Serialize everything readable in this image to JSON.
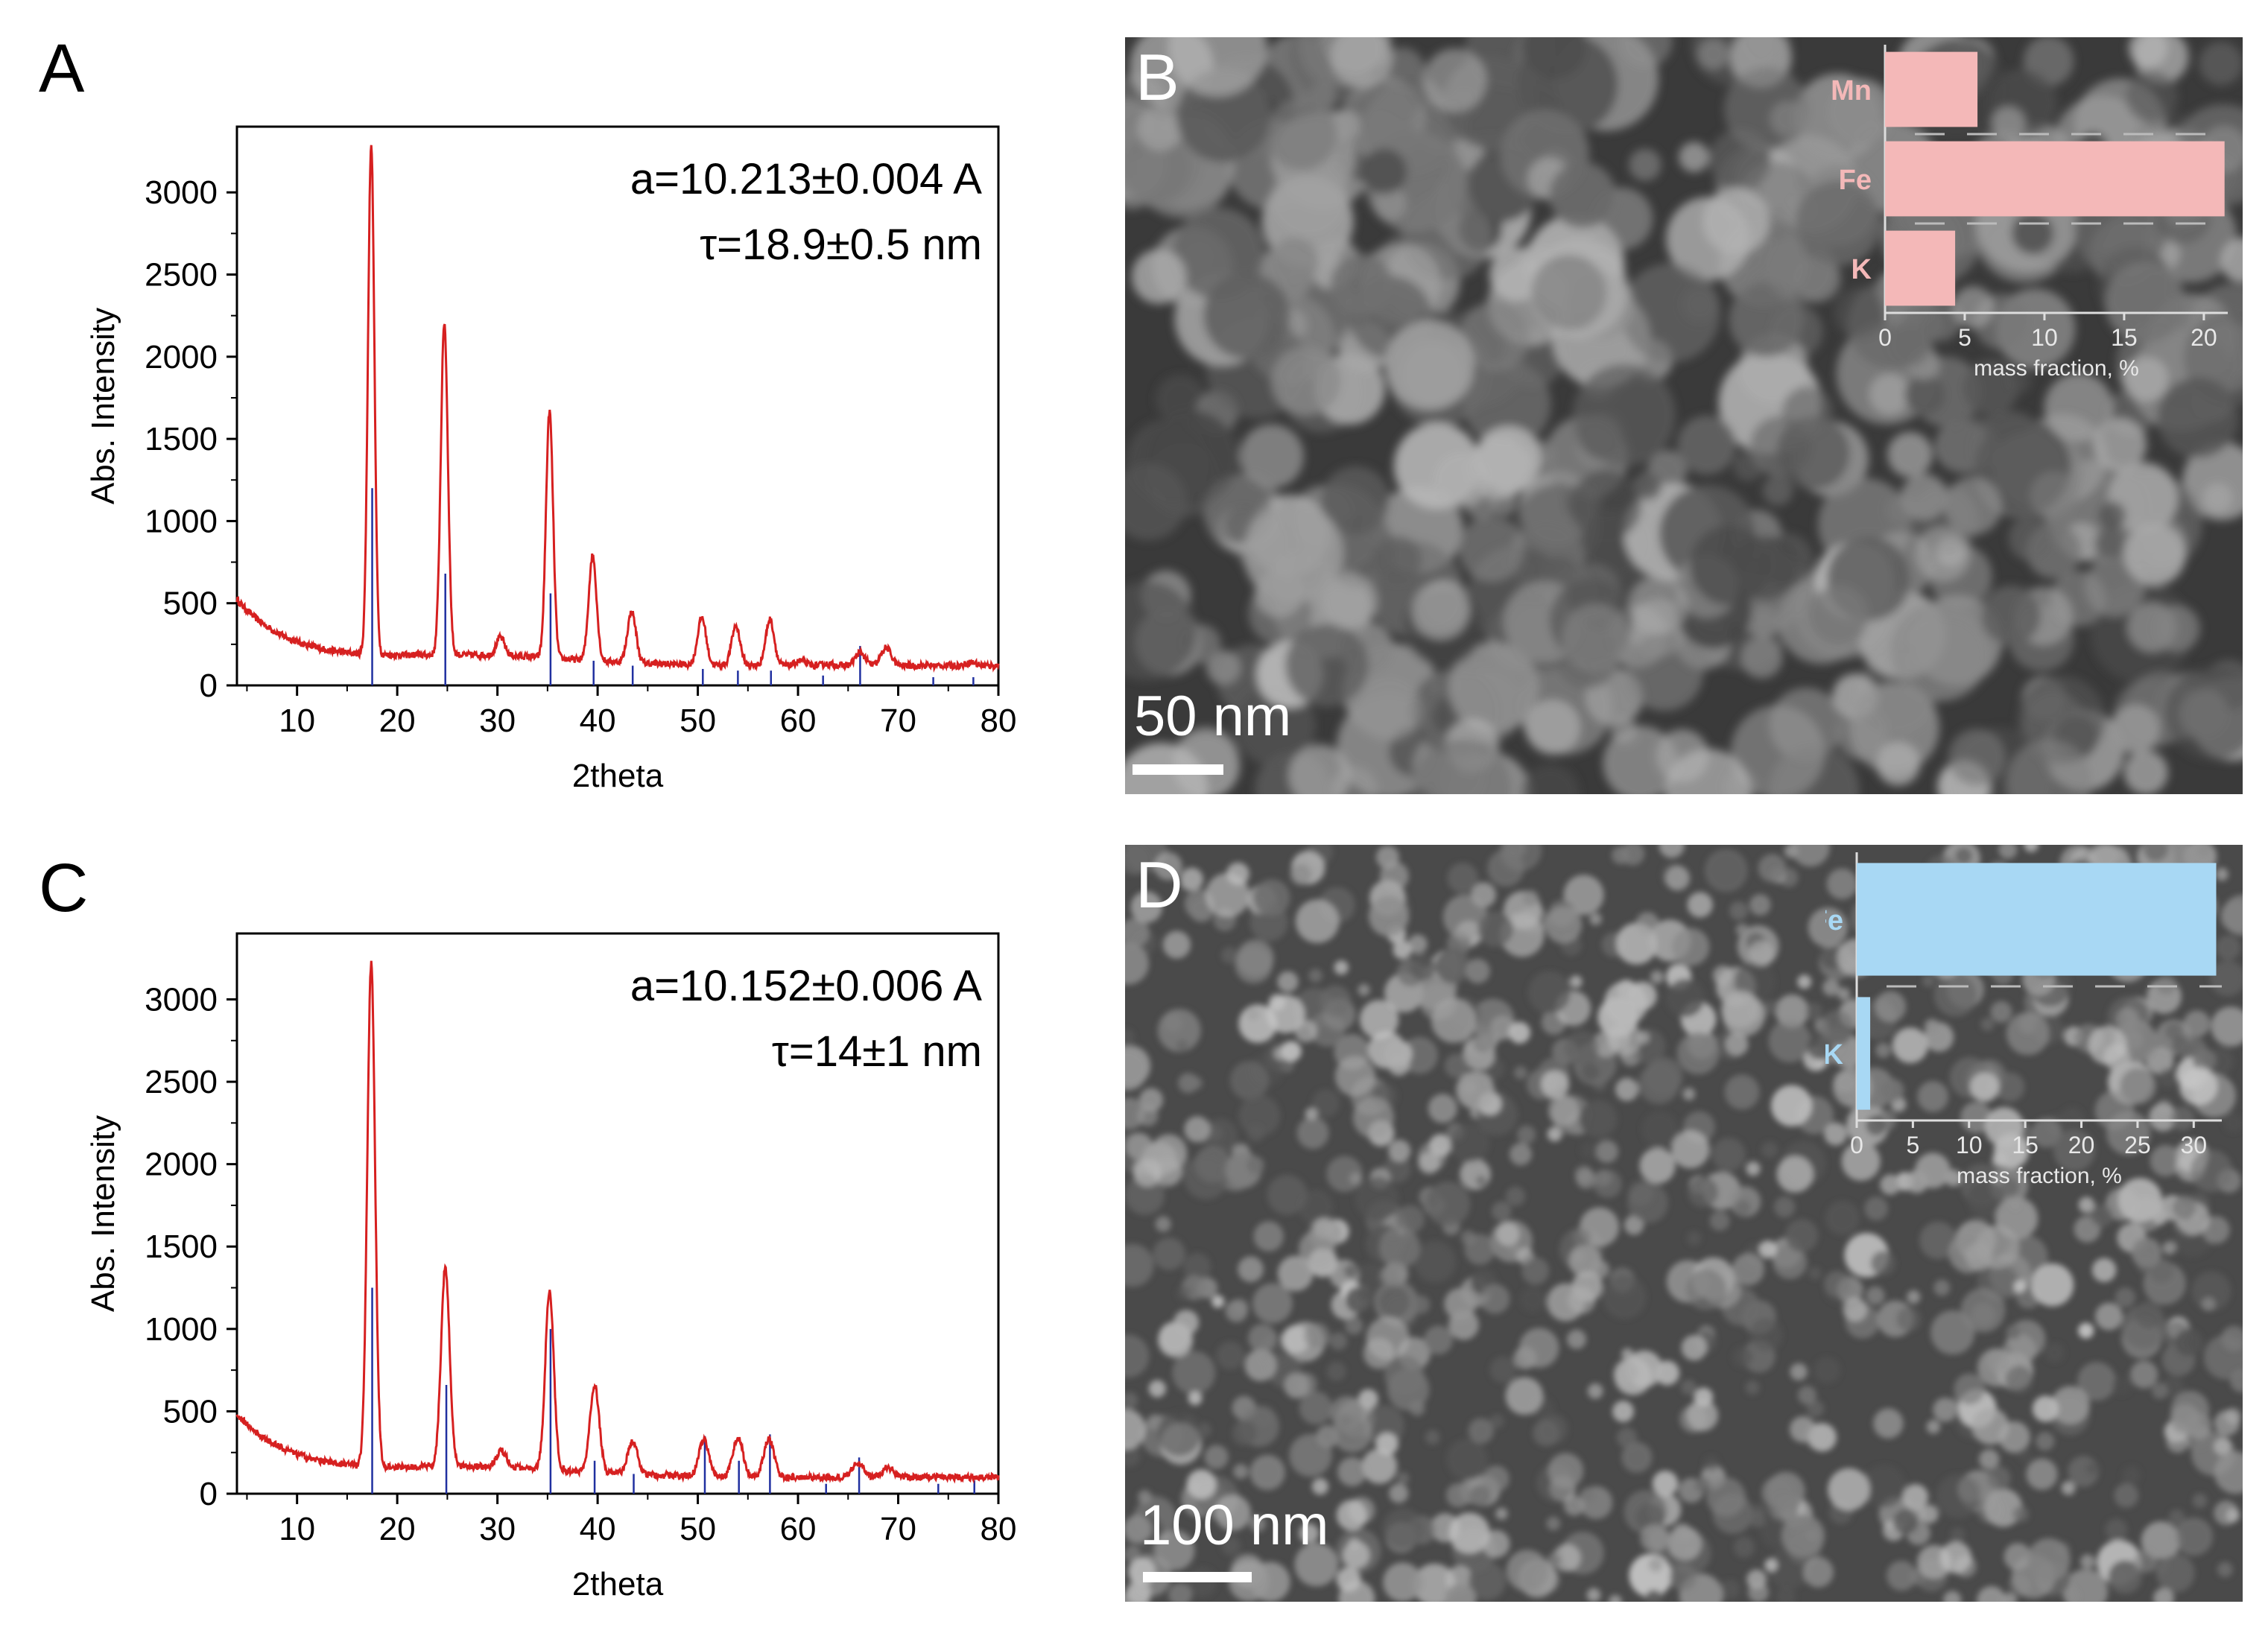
{
  "panels": {
    "A": {
      "letter": "A"
    },
    "B": {
      "letter": "B",
      "scale_label": "50 nm"
    },
    "C": {
      "letter": "C"
    },
    "D": {
      "letter": "D",
      "scale_label": "100 nm"
    }
  },
  "colors": {
    "xrd_line": "#d62020",
    "reference_line": "#2030a0",
    "inset_B_bar": "#f4b8b8",
    "inset_D_bar": "#a8d8f4",
    "inset_axis_text": "#e8e8e8"
  },
  "chart_data": [
    {
      "id": "A",
      "type": "line",
      "xlabel": "2theta",
      "ylabel": "Abs. Intensity",
      "xlim": [
        4,
        80
      ],
      "ylim": [
        0,
        3400
      ],
      "xticks": [
        10,
        20,
        30,
        40,
        50,
        60,
        70,
        80
      ],
      "yticks": [
        0,
        500,
        1000,
        1500,
        2000,
        2500,
        3000
      ],
      "annotations": [
        "a=10.213±0.004 A",
        "τ=18.9±0.5 nm"
      ],
      "background": {
        "start": 520,
        "floor": 120
      },
      "peaks": [
        {
          "x": 17.4,
          "y": 3230,
          "w": 0.45
        },
        {
          "x": 24.7,
          "y": 2140,
          "w": 0.5
        },
        {
          "x": 30.3,
          "y": 230,
          "w": 0.6
        },
        {
          "x": 35.2,
          "y": 1620,
          "w": 0.5
        },
        {
          "x": 39.5,
          "y": 760,
          "w": 0.55
        },
        {
          "x": 43.4,
          "y": 430,
          "w": 0.6
        },
        {
          "x": 50.4,
          "y": 410,
          "w": 0.6
        },
        {
          "x": 53.8,
          "y": 360,
          "w": 0.6
        },
        {
          "x": 57.2,
          "y": 400,
          "w": 0.6
        },
        {
          "x": 60.3,
          "y": 150,
          "w": 0.7
        },
        {
          "x": 63.0,
          "y": 130,
          "w": 0.7
        },
        {
          "x": 66.2,
          "y": 200,
          "w": 0.7
        },
        {
          "x": 68.8,
          "y": 230,
          "w": 0.7
        },
        {
          "x": 74.5,
          "y": 120,
          "w": 0.7
        },
        {
          "x": 77.3,
          "y": 140,
          "w": 0.7
        }
      ],
      "reference": [
        {
          "x": 17.5,
          "y": 1200
        },
        {
          "x": 24.8,
          "y": 680
        },
        {
          "x": 35.3,
          "y": 560
        },
        {
          "x": 39.6,
          "y": 150
        },
        {
          "x": 43.5,
          "y": 120
        },
        {
          "x": 50.5,
          "y": 100
        },
        {
          "x": 54.0,
          "y": 90
        },
        {
          "x": 57.3,
          "y": 90
        },
        {
          "x": 62.5,
          "y": 60
        },
        {
          "x": 66.2,
          "y": 240
        },
        {
          "x": 73.5,
          "y": 50
        },
        {
          "x": 77.5,
          "y": 50
        }
      ]
    },
    {
      "id": "C",
      "type": "line",
      "xlabel": "2theta",
      "ylabel": "Abs. Intensity",
      "xlim": [
        4,
        80
      ],
      "ylim": [
        0,
        3400
      ],
      "xticks": [
        10,
        20,
        30,
        40,
        50,
        60,
        70,
        80
      ],
      "yticks": [
        0,
        500,
        1000,
        1500,
        2000,
        2500,
        3000
      ],
      "annotations": [
        "a=10.152±0.006 A",
        "τ=14±1 nm"
      ],
      "background": {
        "start": 480,
        "floor": 100
      },
      "peaks": [
        {
          "x": 17.4,
          "y": 3150,
          "w": 0.55
        },
        {
          "x": 24.8,
          "y": 1310,
          "w": 0.6
        },
        {
          "x": 30.4,
          "y": 200,
          "w": 0.7
        },
        {
          "x": 35.2,
          "y": 1180,
          "w": 0.6
        },
        {
          "x": 39.7,
          "y": 630,
          "w": 0.65
        },
        {
          "x": 43.5,
          "y": 300,
          "w": 0.7
        },
        {
          "x": 50.6,
          "y": 320,
          "w": 0.7
        },
        {
          "x": 54.0,
          "y": 340,
          "w": 0.7
        },
        {
          "x": 57.1,
          "y": 330,
          "w": 0.7
        },
        {
          "x": 66.0,
          "y": 190,
          "w": 0.8
        },
        {
          "x": 69.0,
          "y": 160,
          "w": 0.8
        },
        {
          "x": 77.5,
          "y": 100,
          "w": 0.8
        }
      ],
      "reference": [
        {
          "x": 17.5,
          "y": 1250
        },
        {
          "x": 24.9,
          "y": 660
        },
        {
          "x": 35.3,
          "y": 1000
        },
        {
          "x": 39.7,
          "y": 200
        },
        {
          "x": 43.6,
          "y": 120
        },
        {
          "x": 50.7,
          "y": 350
        },
        {
          "x": 54.1,
          "y": 200
        },
        {
          "x": 57.2,
          "y": 360
        },
        {
          "x": 62.8,
          "y": 60
        },
        {
          "x": 66.1,
          "y": 220
        },
        {
          "x": 74.0,
          "y": 60
        },
        {
          "x": 77.6,
          "y": 80
        }
      ]
    },
    {
      "id": "B-inset",
      "type": "bar",
      "orientation": "horizontal",
      "categories": [
        "Mn",
        "Fe",
        "K"
      ],
      "values": [
        5.8,
        21.3,
        4.4
      ],
      "xlabel": "mass fraction, %",
      "xlim": [
        0,
        21.5
      ],
      "xticks": [
        0,
        5,
        10,
        15,
        20
      ]
    },
    {
      "id": "D-inset",
      "type": "bar",
      "orientation": "horizontal",
      "categories": [
        "Fe",
        "K"
      ],
      "values": [
        32,
        1.2
      ],
      "xlabel": "mass fraction, %",
      "xlim": [
        0,
        32.5
      ],
      "xticks": [
        0,
        5,
        10,
        15,
        20,
        25,
        30
      ]
    }
  ]
}
